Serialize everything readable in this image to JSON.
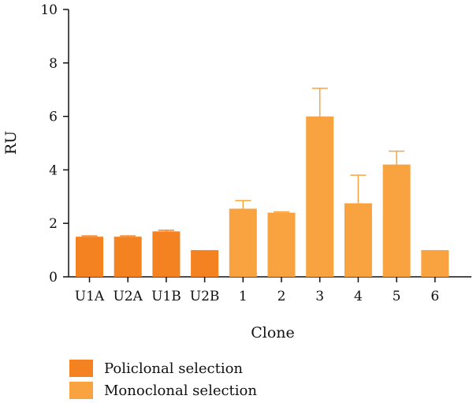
{
  "chart_data": {
    "type": "bar",
    "categories": [
      "U1A",
      "U2A",
      "U1B",
      "U2B",
      "1",
      "2",
      "3",
      "4",
      "5",
      "6"
    ],
    "values": [
      1.5,
      1.5,
      1.7,
      1.0,
      2.55,
      2.4,
      6.0,
      2.75,
      4.2,
      1.0
    ],
    "errors": [
      0.03,
      0.03,
      0.04,
      0.0,
      0.3,
      0.03,
      1.05,
      1.05,
      0.5,
      0.0
    ],
    "groups": [
      "Policlonal selection",
      "Policlonal selection",
      "Policlonal selection",
      "Policlonal selection",
      "Monoclonal selection",
      "Monoclonal selection",
      "Monoclonal selection",
      "Monoclonal selection",
      "Monoclonal selection",
      "Monoclonal selection"
    ],
    "xlabel": "Clone",
    "ylabel": "RU",
    "ylim": [
      0,
      10
    ],
    "yticks": [
      0,
      2,
      4,
      6,
      8,
      10
    ],
    "grid": false,
    "legend": {
      "placement": "bottom-left",
      "entries": [
        {
          "label": "Policlonal selection",
          "color": "#f58220"
        },
        {
          "label": "Monoclonal selection",
          "color": "#f9a340"
        }
      ]
    }
  }
}
